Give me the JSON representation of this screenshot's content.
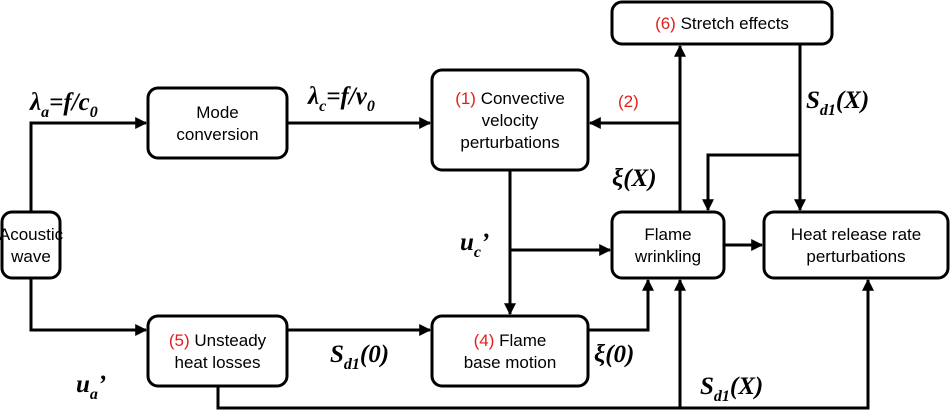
{
  "nodes": [
    {
      "lines": [
        "Acoustic",
        "wave"
      ]
    },
    {
      "lines": [
        "Mode",
        "conversion"
      ]
    },
    {
      "number": "(1)",
      "lines": [
        "Convective",
        "velocity",
        "perturbations"
      ]
    },
    {
      "number": "(6)",
      "lines": [
        "Stretch effects"
      ]
    },
    {
      "lines": [
        "Flame",
        "wrinkling"
      ]
    },
    {
      "lines": [
        "Heat release rate",
        "perturbations"
      ]
    },
    {
      "number": "(5)",
      "lines": [
        "Unsteady",
        "heat losses"
      ]
    },
    {
      "number": "(4)",
      "lines": [
        "Flame",
        "base motion"
      ]
    }
  ],
  "edge_labels": [
    [
      {
        "text": "λ"
      },
      {
        "text": "a",
        "sub": true
      },
      {
        "text": "=f/c"
      },
      {
        "text": "0",
        "sub": true
      }
    ],
    [
      {
        "text": "λ"
      },
      {
        "text": "c",
        "sub": true
      },
      {
        "text": "=f/v"
      },
      {
        "text": "0",
        "sub": true
      }
    ],
    [
      {
        "text": "(2)"
      }
    ],
    [
      {
        "text": "S"
      },
      {
        "text": "d1",
        "sub": true
      },
      {
        "text": "(X)"
      }
    ],
    [
      {
        "text": "ξ(X)"
      }
    ],
    [
      {
        "text": "u"
      },
      {
        "text": "c",
        "sub": true
      },
      {
        "text": "’"
      }
    ],
    [
      {
        "text": "u"
      },
      {
        "text": "a",
        "sub": true
      },
      {
        "text": "’"
      }
    ],
    [
      {
        "text": "S"
      },
      {
        "text": "d1",
        "sub": true
      },
      {
        "text": "(0)"
      }
    ],
    [
      {
        "text": "ξ(0)"
      }
    ],
    [
      {
        "text": "S"
      },
      {
        "text": "d1",
        "sub": true
      },
      {
        "text": "(X)"
      }
    ]
  ]
}
